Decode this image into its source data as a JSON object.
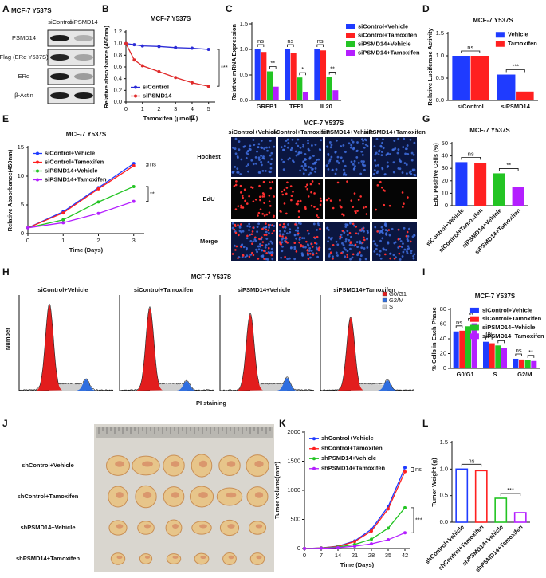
{
  "blot": {
    "panel": "A",
    "title": "MCF-7 Y537S",
    "lanes": [
      "siControl",
      "siPSMD14"
    ],
    "rows": [
      "PSMD14",
      "Flag (ERα Y537S)",
      "ERα",
      "β-Actin"
    ]
  },
  "imaging": {
    "panel": "F",
    "title": "MCF-7 Y537S",
    "columns": [
      "siControl+Vehicle",
      "siControl+Tamoxifen",
      "siPSMD14+Vehicle",
      "siPSMD14+Tamoxifen"
    ],
    "rows": [
      "Hochest",
      "EdU",
      "Merge"
    ]
  },
  "flow": {
    "panel": "H",
    "title": "MCF-7 Y537S",
    "samples": [
      "siControl+Vehicle",
      "siControl+Tamoxifen",
      "siPSMD14+Vehicle",
      "siPSMD14+Tamoxifen"
    ],
    "ylabel": "Number",
    "xlabel": "PI staining",
    "phases": [
      "G0/G1",
      "G2/M",
      "S"
    ]
  },
  "tumors": {
    "panel": "J",
    "groups": [
      "shControl+Vehicle",
      "shControl+Tamoxifen",
      "shPSMD14+Vehicle",
      "shPSMD14+Tamoxifen"
    ]
  },
  "chart_data": [
    {
      "panel": "B",
      "type": "line",
      "title": "MCF-7 Y537S",
      "xlabel": "Tamoxifen (μmol/L)",
      "ylabel": "Relative absorbance (450nm)",
      "x": [
        0,
        0.5,
        1,
        2,
        3,
        4,
        5
      ],
      "xlim": [
        0,
        5.4
      ],
      "xticks": [
        0,
        1,
        2,
        3,
        4,
        5
      ],
      "ylim": [
        0,
        1.2
      ],
      "yticks": [
        {
          "value": 0,
          "label": "0.0"
        },
        0.2,
        0.4,
        0.6,
        0.8,
        {
          "value": 1,
          "label": "1.0"
        },
        1.2
      ],
      "series": [
        {
          "name": "siControl",
          "color": "#2b2bd6",
          "values": [
            1.0,
            0.98,
            0.96,
            0.95,
            0.93,
            0.92,
            0.9
          ]
        },
        {
          "name": "siPSMD14",
          "color": "#e02a2a",
          "values": [
            1.0,
            0.72,
            0.62,
            0.52,
            0.42,
            0.33,
            0.27
          ]
        }
      ],
      "legend": "lower left",
      "annotations": [
        "***"
      ]
    },
    {
      "panel": "C",
      "type": "bar",
      "ylabel": "Relative mRNA Expression",
      "categories": [
        "GREB1",
        "TFF1",
        "IL20"
      ],
      "ylim": [
        0,
        1.5
      ],
      "yticks": [
        {
          "value": 0,
          "label": "0.0"
        },
        0.5,
        {
          "value": 1,
          "label": "1.0"
        },
        1.5
      ],
      "series": [
        {
          "name": "siControl+Vehicle",
          "color": "#1f3bff",
          "values": [
            1.0,
            1.0,
            1.0
          ]
        },
        {
          "name": "siControl+Tamoxifen",
          "color": "#ff2020",
          "values": [
            0.95,
            0.93,
            0.98
          ]
        },
        {
          "name": "siPSMD14+Vehicle",
          "color": "#23c423",
          "values": [
            0.57,
            0.45,
            0.46
          ]
        },
        {
          "name": "siPSMD14+Tamoxifen",
          "color": "#b41fff",
          "values": [
            0.27,
            0.17,
            0.2
          ]
        }
      ],
      "legend": "right",
      "annotations": [
        "ns",
        "**",
        "ns",
        "*",
        "ns",
        "**"
      ]
    },
    {
      "panel": "D",
      "type": "bar",
      "title": "MCF-7 Y537S",
      "ylabel": "Relative Luciferase Activity",
      "categories": [
        "siControl",
        "siPSMD14"
      ],
      "ylim": [
        0,
        1.5
      ],
      "yticks": [
        {
          "value": 0,
          "label": "0.0"
        },
        0.5,
        {
          "value": 1,
          "label": "1.0"
        },
        1.5
      ],
      "series": [
        {
          "name": "Vehicle",
          "color": "#1f3bff",
          "values": [
            1.0,
            0.58
          ]
        },
        {
          "name": "Tamoxifen",
          "color": "#ff2020",
          "values": [
            1.0,
            0.2
          ]
        }
      ],
      "legend": "upper right",
      "annotations": [
        "ns",
        "***"
      ]
    },
    {
      "panel": "E",
      "type": "line",
      "title": "MCF-7 Y537S",
      "xlabel": "Time (Days)",
      "ylabel": "Relative Absorbance(450nm)",
      "x": [
        0,
        1,
        2,
        3
      ],
      "xlim": [
        0,
        3.3
      ],
      "xticks": [
        0,
        1,
        2,
        3
      ],
      "ylim": [
        0,
        15
      ],
      "yticks": [
        0,
        5,
        10,
        15
      ],
      "series": [
        {
          "name": "siControl+Vehicle",
          "color": "#1f3bff",
          "values": [
            1,
            3.8,
            8.0,
            12.2
          ]
        },
        {
          "name": "siControl+Tamoxifen",
          "color": "#ff2020",
          "values": [
            1,
            3.6,
            7.8,
            11.8
          ]
        },
        {
          "name": "siPSMD14+Vehicle",
          "color": "#23c423",
          "values": [
            1,
            2.4,
            5.5,
            8.2
          ]
        },
        {
          "name": "siPSMD14+Tamoxifen",
          "color": "#b41fff",
          "values": [
            1,
            1.9,
            3.5,
            5.6
          ]
        }
      ],
      "legend": "upper left",
      "annotations": [
        "ns",
        "**"
      ]
    },
    {
      "panel": "G",
      "type": "bar",
      "title": "MCF-7 Y537S",
      "ylabel": "EdU Positive Cells (%)",
      "categories": [
        "siControl+Vehicle",
        "siControl+Tamoxifen",
        "siPSMD14+Vehicle",
        "siPSMD14+Tamoxifen"
      ],
      "values": [
        35,
        34,
        26,
        15
      ],
      "colors": [
        "#1f3bff",
        "#ff2020",
        "#23c423",
        "#b41fff"
      ],
      "ylim": [
        0,
        50
      ],
      "yticks": [
        0,
        10,
        20,
        30,
        40,
        50
      ],
      "xtick_rotation": -45,
      "annotations": [
        "ns",
        "**"
      ]
    },
    {
      "panel": "I",
      "type": "bar",
      "title": "MCF-7 Y537S",
      "ylabel": "% Cells in Each Phase",
      "categories": [
        "G0/G1",
        "S",
        "G2/M"
      ],
      "ylim": [
        0,
        80
      ],
      "yticks": [
        0,
        20,
        40,
        60,
        80
      ],
      "series": [
        {
          "name": "siControl+Vehicle",
          "color": "#1f3bff",
          "values": [
            50,
            36,
            13
          ]
        },
        {
          "name": "siControl+Tamoxifen",
          "color": "#ff2020",
          "values": [
            51,
            34,
            12
          ]
        },
        {
          "name": "siPSMD14+Vehicle",
          "color": "#23c423",
          "values": [
            57,
            31,
            11
          ]
        },
        {
          "name": "siPSMD14+Tamoxifen",
          "color": "#b41fff",
          "values": [
            61,
            28,
            10
          ]
        }
      ],
      "legend": "upper right",
      "annotations": [
        "ns",
        "**",
        "ns",
        "*",
        "ns",
        "**"
      ]
    },
    {
      "panel": "K",
      "type": "line",
      "xlabel": "Time (Days)",
      "ylabel": "Tumor volume(mm³)",
      "x": [
        0,
        7,
        14,
        21,
        28,
        35,
        42
      ],
      "xlim": [
        0,
        44
      ],
      "xticks": [
        0,
        7,
        14,
        21,
        28,
        35,
        42
      ],
      "ylim": [
        0,
        2000
      ],
      "yticks": [
        0,
        500,
        1000,
        1500,
        2000
      ],
      "series": [
        {
          "name": "shControl+Vehicle",
          "color": "#1f3bff",
          "values": [
            0,
            10,
            40,
            130,
            330,
            720,
            1390
          ]
        },
        {
          "name": "shControl+Tamoxifen",
          "color": "#ff2020",
          "values": [
            0,
            10,
            35,
            120,
            300,
            680,
            1320
          ]
        },
        {
          "name": "shPSMD14+Vehicle",
          "color": "#23c423",
          "values": [
            0,
            8,
            25,
            70,
            160,
            350,
            700
          ]
        },
        {
          "name": "shPSMD14+Tamoxifen",
          "color": "#b41fff",
          "values": [
            0,
            5,
            15,
            40,
            80,
            150,
            270
          ]
        }
      ],
      "legend": "upper left",
      "annotations": [
        "ns",
        "***"
      ]
    },
    {
      "panel": "L",
      "type": "bar",
      "ylabel": "Tumor Weight (g)",
      "categories": [
        "shControl+Vehicle",
        "shControl+Tamoxifen",
        "shPSMD14+Vehicle",
        "shPSMD14+Tamoxifen"
      ],
      "values": [
        1.0,
        0.97,
        0.45,
        0.18
      ],
      "colors": [
        "#1f3bff",
        "#ff2020",
        "#23c423",
        "#b41fff"
      ],
      "bar_style": "outline",
      "ylim": [
        0,
        1.5
      ],
      "yticks": [
        {
          "value": 0,
          "label": "0.0"
        },
        0.5,
        {
          "value": 1,
          "label": "1.0"
        },
        1.5
      ],
      "xtick_rotation": -45,
      "annotations": [
        "ns",
        "***"
      ]
    }
  ]
}
